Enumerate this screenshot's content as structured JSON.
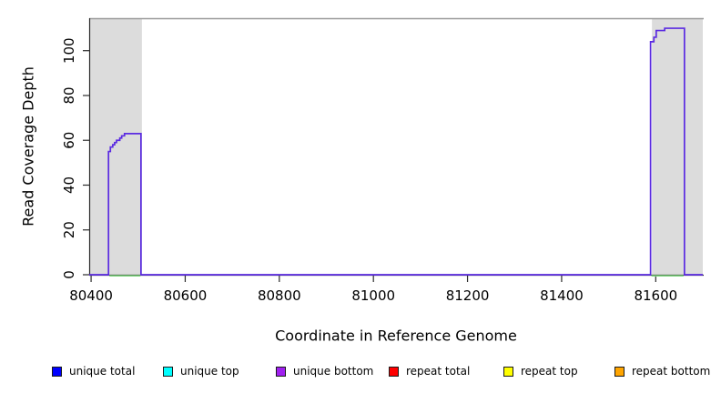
{
  "chart_data": {
    "type": "line",
    "title": "",
    "xlabel": "Coordinate in Reference Genome",
    "ylabel": "Read Coverage Depth",
    "xlim": [
      80396,
      81700
    ],
    "ylim": [
      0,
      114.5
    ],
    "xticks": [
      80400,
      80600,
      80800,
      81000,
      81200,
      81400,
      81600
    ],
    "yticks": [
      0,
      20,
      40,
      60,
      80,
      100
    ],
    "grid": false,
    "legend_position": "bottom",
    "colors": {
      "coverage_line": "#5b2be1",
      "baseline_line": "#7fd87f",
      "shaded_region": "#dcdcdc",
      "top_border": "#9b9b9b",
      "axis": "#2b2b2b"
    },
    "shaded_regions": [
      {
        "name": "left-gray-region",
        "x0": 80396,
        "x1": 80508
      },
      {
        "name": "right-gray-region",
        "x0": 81592,
        "x1": 81700
      }
    ],
    "series": [
      {
        "name": "coverage-outline",
        "color": "#5b2be1",
        "step": true,
        "points": [
          [
            80396,
            0
          ],
          [
            80437,
            0
          ],
          [
            80437,
            55
          ],
          [
            80441,
            55
          ],
          [
            80441,
            57
          ],
          [
            80446,
            57
          ],
          [
            80446,
            58
          ],
          [
            80450,
            58
          ],
          [
            80450,
            59
          ],
          [
            80454,
            59
          ],
          [
            80454,
            60
          ],
          [
            80461,
            60
          ],
          [
            80461,
            61
          ],
          [
            80465,
            61
          ],
          [
            80465,
            62
          ],
          [
            80471,
            62
          ],
          [
            80471,
            63
          ],
          [
            80506,
            63
          ],
          [
            80506,
            0
          ],
          [
            81589,
            0
          ],
          [
            81589,
            104
          ],
          [
            81596,
            104
          ],
          [
            81596,
            106
          ],
          [
            81601,
            106
          ],
          [
            81601,
            109
          ],
          [
            81619,
            109
          ],
          [
            81619,
            110
          ],
          [
            81661,
            110
          ],
          [
            81661,
            0
          ],
          [
            81700,
            0
          ]
        ]
      },
      {
        "name": "baseline-green",
        "color": "#7fd87f",
        "segments": [
          [
            [
              80439,
              0
            ],
            [
              80505,
              0
            ]
          ],
          [
            [
              81591,
              0
            ],
            [
              81659,
              0
            ]
          ]
        ]
      }
    ]
  },
  "legend": {
    "items": [
      {
        "label": "unique total",
        "color": "#0000ff"
      },
      {
        "label": "unique top",
        "color": "#00ffff"
      },
      {
        "label": "unique bottom",
        "color": "#a020f0"
      },
      {
        "label": "repeat total",
        "color": "#ff0000"
      },
      {
        "label": "repeat top",
        "color": "#ffff00"
      },
      {
        "label": "repeat bottom",
        "color": "#ffa500"
      }
    ]
  }
}
